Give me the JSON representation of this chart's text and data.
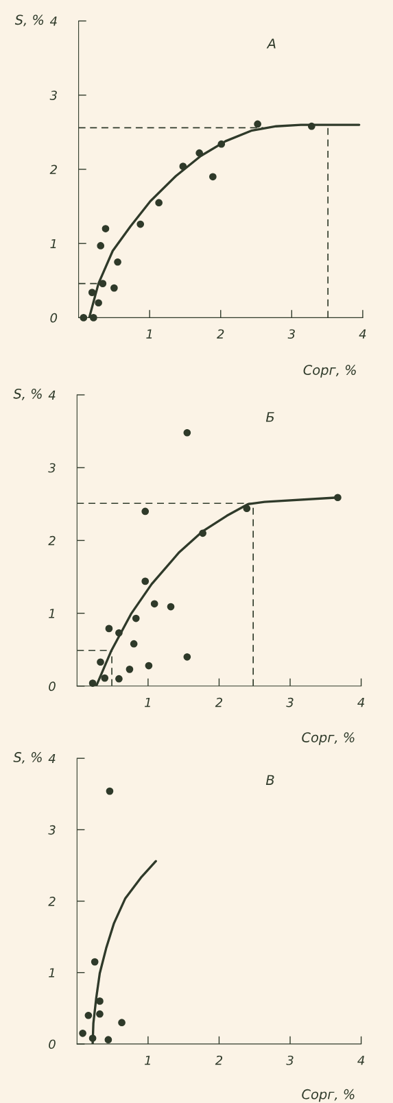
{
  "chart_data": [
    {
      "type": "scatter",
      "title": "А",
      "xlabel": "Сорг, %",
      "ylabel": "S, %",
      "xlim": [
        0,
        4
      ],
      "ylim": [
        0,
        4
      ],
      "xticks": [
        1,
        2,
        3,
        4
      ],
      "yticks": [
        0,
        1,
        2,
        3,
        4
      ],
      "grid": false,
      "marker": "circle",
      "series": [
        {
          "color": "#2f3a2a",
          "x": [
            0.07,
            0.21,
            0.19,
            0.28,
            0.34,
            0.38,
            0.31,
            0.55,
            0.5,
            0.87,
            1.13,
            1.47,
            1.7,
            1.89,
            2.01,
            2.52,
            3.28
          ],
          "values": [
            0,
            0,
            0.34,
            0.2,
            0.46,
            1.2,
            0.97,
            0.75,
            0.4,
            1.26,
            1.55,
            2.04,
            2.22,
            1.9,
            2.34,
            2.61,
            2.58
          ]
        },
        {
          "type": "line",
          "marker": "none",
          "color": "#2f3a2a",
          "line_style": "solid",
          "x": [
            0.15,
            0.28,
            0.48,
            0.73,
            1.01,
            1.37,
            1.72,
            2.07,
            2.43,
            2.78,
            3.13,
            3.95
          ],
          "values": [
            0,
            0.46,
            0.9,
            1.23,
            1.57,
            1.91,
            2.18,
            2.38,
            2.52,
            2.58,
            2.6,
            2.6
          ]
        },
        {
          "type": "line",
          "marker": "none",
          "color": "#2f3a2a",
          "line_style": "dashed",
          "x": [
            0,
            2.6
          ],
          "values": [
            2.56,
            2.56
          ]
        },
        {
          "type": "line",
          "marker": "none",
          "color": "#2f3a2a",
          "line_style": "dashed",
          "x": [
            3.51,
            3.51
          ],
          "values": [
            0,
            2.56
          ]
        },
        {
          "type": "line",
          "marker": "none",
          "color": "#2f3a2a",
          "line_style": "dashed",
          "x": [
            0,
            0.28
          ],
          "values": [
            0.46,
            0.46
          ]
        }
      ]
    },
    {
      "type": "scatter",
      "title": "Б",
      "xlabel": "Сорг, %",
      "ylabel": "S, %",
      "xlim": [
        0,
        4
      ],
      "ylim": [
        0,
        4
      ],
      "xticks": [
        1,
        2,
        3,
        4
      ],
      "yticks": [
        0,
        1,
        2,
        3,
        4
      ],
      "grid": false,
      "marker": "circle",
      "series": [
        {
          "color": "#2f3a2a",
          "x": [
            0.22,
            0.33,
            0.39,
            0.45,
            0.59,
            0.59,
            0.74,
            0.8,
            0.83,
            0.96,
            1.01,
            1.09,
            1.32,
            0.96,
            1.55,
            1.55,
            1.77,
            2.39,
            3.67
          ],
          "values": [
            0.04,
            0.33,
            0.11,
            0.79,
            0.1,
            0.73,
            0.23,
            0.58,
            0.93,
            1.44,
            0.28,
            1.13,
            1.09,
            2.4,
            3.48,
            0.4,
            2.1,
            2.44,
            2.59
          ]
        },
        {
          "type": "line",
          "marker": "none",
          "color": "#2f3a2a",
          "line_style": "solid",
          "x": [
            0.27,
            0.48,
            0.76,
            1.05,
            1.44,
            1.76,
            2.11,
            2.41,
            2.64,
            3.67
          ],
          "values": [
            0,
            0.48,
            0.99,
            1.4,
            1.84,
            2.12,
            2.34,
            2.5,
            2.53,
            2.59
          ]
        },
        {
          "type": "line",
          "marker": "none",
          "color": "#2f3a2a",
          "line_style": "dashed",
          "x": [
            0,
            2.48
          ],
          "values": [
            2.51,
            2.51
          ]
        },
        {
          "type": "line",
          "marker": "none",
          "color": "#2f3a2a",
          "line_style": "dashed",
          "x": [
            2.48,
            2.48
          ],
          "values": [
            0,
            2.51
          ]
        },
        {
          "type": "line",
          "marker": "none",
          "color": "#2f3a2a",
          "line_style": "dashed",
          "x": [
            0,
            0.49
          ],
          "values": [
            0.49,
            0.49
          ]
        },
        {
          "type": "line",
          "marker": "none",
          "color": "#2f3a2a",
          "line_style": "dashed",
          "x": [
            0.49,
            0.49
          ],
          "values": [
            0,
            0.49
          ]
        }
      ]
    },
    {
      "type": "scatter",
      "title": "В",
      "xlabel": "Сорг, %",
      "ylabel": "S, %",
      "xlim": [
        0,
        4
      ],
      "ylim": [
        0,
        4
      ],
      "xticks": [
        1,
        2,
        3,
        4
      ],
      "yticks": [
        0,
        1,
        2,
        3,
        4
      ],
      "grid": false,
      "marker": "circle",
      "series": [
        {
          "color": "#2f3a2a",
          "x": [
            0.46,
            0.25,
            0.32,
            0.16,
            0.32,
            0.63,
            0.08,
            0.22,
            0.44
          ],
          "values": [
            3.54,
            1.15,
            0.6,
            0.4,
            0.42,
            0.3,
            0.15,
            0.08,
            0.06
          ]
        },
        {
          "type": "line",
          "marker": "none",
          "color": "#2f3a2a",
          "line_style": "solid",
          "x": [
            0.22,
            0.23,
            0.27,
            0.32,
            0.41,
            0.52,
            0.68,
            0.9,
            1.11
          ],
          "values": [
            0,
            0.29,
            0.64,
            0.99,
            1.34,
            1.69,
            2.04,
            2.33,
            2.56
          ]
        }
      ]
    }
  ]
}
